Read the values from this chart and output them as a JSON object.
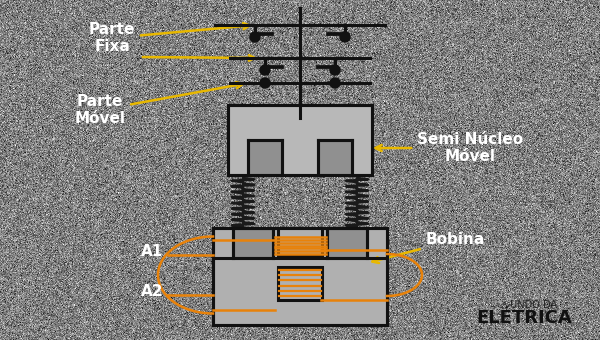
{
  "bg_color": "#888888",
  "line_color": "#111111",
  "orange_color": "#E8820A",
  "yellow_color": "#E8B800",
  "text_color": "#FFFFFF",
  "labels": {
    "parte_fixa": "Parte\nFixa",
    "parte_movel": "Parte\nMóvel",
    "semi_nucleo": "Semi Núcleo\nMóvel",
    "bobina": "Bobina",
    "A1": "A1",
    "A2": "A2"
  },
  "figsize": [
    6.0,
    3.4
  ],
  "dpi": 100
}
